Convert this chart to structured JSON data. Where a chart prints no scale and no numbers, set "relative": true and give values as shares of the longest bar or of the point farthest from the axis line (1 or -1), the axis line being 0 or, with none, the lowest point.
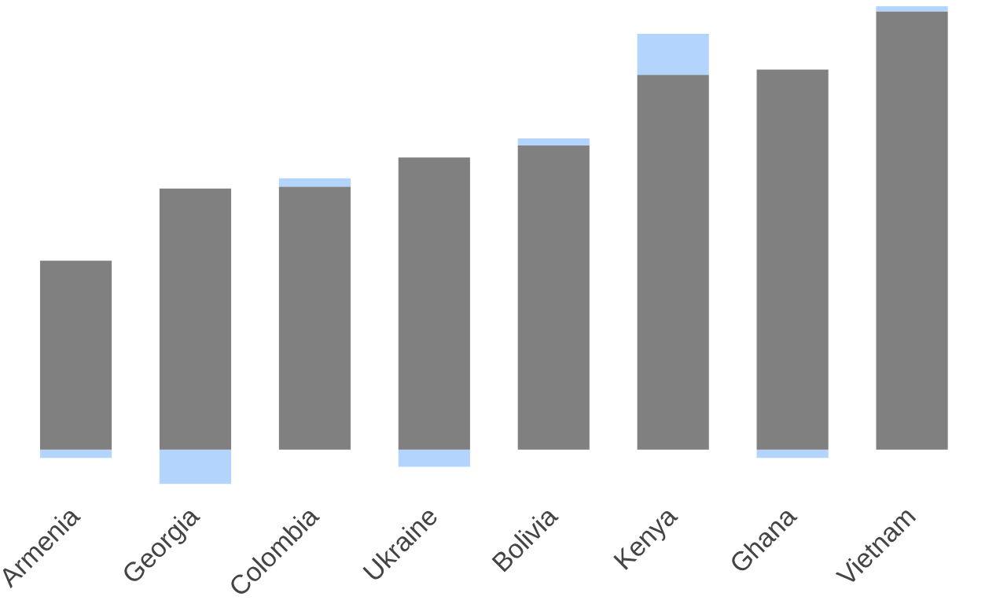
{
  "chart_data": {
    "type": "bar",
    "relative": true,
    "categories": [
      "Armenia",
      "Georgia",
      "Colombia",
      "Ukraine",
      "Bolivia",
      "Kenya",
      "Ghana",
      "Vietnam"
    ],
    "series": [
      {
        "color": "#808080",
        "values": [
          0.426,
          0.589,
          0.593,
          0.659,
          0.686,
          0.845,
          0.857,
          0.988
        ]
      },
      {
        "color": "#b3d4fc",
        "values": [
          -0.019,
          -0.078,
          0.019,
          -0.039,
          0.016,
          0.093,
          -0.019,
          0.012
        ]
      }
    ],
    "stacked": true,
    "legend": false,
    "grid": false
  }
}
